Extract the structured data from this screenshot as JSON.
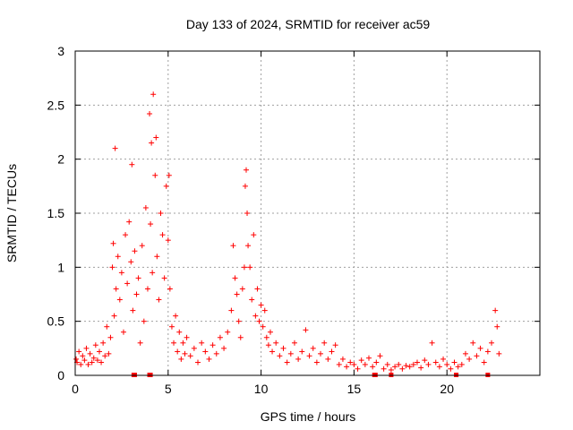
{
  "chart_data": {
    "type": "scatter",
    "title": "Day 133 of 2024, SRMTID for receiver ac59",
    "xlabel": "GPS time / hours",
    "ylabel": "SRMTID / TECUs",
    "xlim": [
      0,
      25
    ],
    "ylim": [
      0,
      3
    ],
    "xticks": [
      0,
      5,
      10,
      15,
      20
    ],
    "yticks": [
      0,
      0.5,
      1,
      1.5,
      2,
      2.5,
      3
    ],
    "grid": true,
    "marker": "+",
    "marker_color": "#ff0000",
    "series": [
      {
        "name": "SRMTID",
        "x": [
          0.05,
          0.1,
          0.2,
          0.3,
          0.4,
          0.5,
          0.6,
          0.7,
          0.8,
          0.9,
          1.0,
          1.1,
          1.2,
          1.3,
          1.4,
          1.5,
          1.6,
          1.7,
          1.8,
          1.9,
          2.0,
          2.05,
          2.1,
          2.15,
          2.2,
          2.3,
          2.4,
          2.5,
          2.6,
          2.7,
          2.8,
          2.9,
          3.0,
          3.05,
          3.1,
          3.2,
          3.3,
          3.4,
          3.5,
          3.6,
          3.7,
          3.8,
          3.9,
          4.0,
          4.05,
          4.1,
          4.15,
          4.2,
          4.3,
          4.35,
          4.4,
          4.5,
          4.6,
          4.7,
          4.8,
          4.9,
          5.0,
          5.05,
          5.1,
          5.2,
          5.3,
          5.4,
          5.5,
          5.6,
          5.7,
          5.8,
          5.9,
          6.0,
          6.2,
          6.4,
          6.6,
          6.8,
          7.0,
          7.2,
          7.4,
          7.6,
          7.8,
          8.0,
          8.2,
          8.4,
          8.5,
          8.6,
          8.7,
          8.8,
          8.9,
          9.0,
          9.1,
          9.15,
          9.2,
          9.25,
          9.3,
          9.4,
          9.5,
          9.6,
          9.7,
          9.8,
          9.9,
          10.0,
          10.1,
          10.2,
          10.3,
          10.4,
          10.5,
          10.6,
          10.8,
          11.0,
          11.2,
          11.4,
          11.6,
          11.8,
          12.0,
          12.2,
          12.4,
          12.6,
          12.8,
          13.0,
          13.2,
          13.4,
          13.6,
          13.8,
          14.0,
          14.2,
          14.4,
          14.6,
          14.8,
          15.0,
          15.2,
          15.4,
          15.6,
          15.8,
          16.0,
          16.2,
          16.4,
          16.6,
          16.8,
          17.0,
          17.2,
          17.4,
          17.6,
          17.8,
          18.0,
          18.2,
          18.4,
          18.6,
          18.8,
          19.0,
          19.2,
          19.4,
          19.6,
          19.8,
          20.0,
          20.2,
          20.4,
          20.6,
          20.8,
          21.0,
          21.2,
          21.4,
          21.6,
          21.8,
          22.0,
          22.2,
          22.4,
          22.6,
          22.7,
          22.8
        ],
        "y": [
          0.15,
          0.12,
          0.22,
          0.1,
          0.18,
          0.14,
          0.25,
          0.1,
          0.2,
          0.12,
          0.16,
          0.28,
          0.14,
          0.22,
          0.12,
          0.3,
          0.18,
          0.45,
          0.2,
          0.35,
          1.0,
          1.22,
          0.55,
          2.1,
          0.8,
          1.1,
          0.7,
          0.95,
          0.4,
          1.3,
          0.85,
          1.42,
          1.05,
          1.95,
          0.6,
          1.15,
          0.75,
          0.9,
          0.3,
          1.2,
          0.5,
          1.55,
          0.8,
          2.42,
          1.4,
          2.15,
          0.95,
          2.6,
          1.85,
          2.2,
          1.1,
          0.7,
          1.5,
          1.3,
          0.9,
          1.75,
          1.25,
          1.85,
          0.8,
          0.45,
          0.3,
          0.55,
          0.22,
          0.4,
          0.15,
          0.3,
          0.2,
          0.35,
          0.18,
          0.25,
          0.12,
          0.3,
          0.22,
          0.15,
          0.28,
          0.2,
          0.35,
          0.25,
          0.4,
          0.6,
          1.2,
          0.9,
          0.75,
          0.5,
          0.35,
          0.8,
          1.0,
          1.75,
          1.9,
          1.5,
          1.2,
          1.0,
          0.7,
          1.3,
          0.55,
          0.8,
          0.5,
          0.65,
          0.45,
          0.6,
          0.35,
          0.28,
          0.4,
          0.22,
          0.3,
          0.18,
          0.25,
          0.12,
          0.2,
          0.3,
          0.15,
          0.22,
          0.42,
          0.18,
          0.25,
          0.12,
          0.2,
          0.3,
          0.15,
          0.22,
          0.28,
          0.1,
          0.15,
          0.08,
          0.12,
          0.1,
          0.06,
          0.14,
          0.1,
          0.16,
          0.08,
          0.12,
          0.18,
          0.06,
          0.1,
          0.05,
          0.08,
          0.1,
          0.06,
          0.09,
          0.08,
          0.1,
          0.12,
          0.07,
          0.14,
          0.1,
          0.3,
          0.12,
          0.08,
          0.15,
          0.1,
          0.06,
          0.12,
          0.08,
          0.1,
          0.2,
          0.15,
          0.3,
          0.18,
          0.25,
          0.12,
          0.22,
          0.3,
          0.6,
          0.45,
          0.2
        ]
      }
    ],
    "zero_markers_x": [
      3.15,
      3.2,
      4.0,
      4.05,
      16.1,
      16.15,
      17.0,
      20.5,
      22.2
    ]
  }
}
